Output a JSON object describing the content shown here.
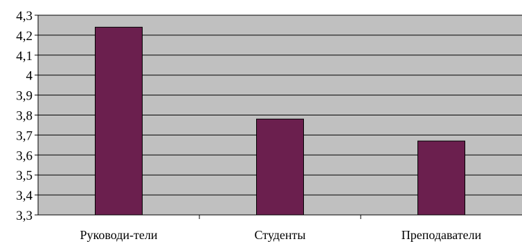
{
  "chart_data": {
    "type": "bar",
    "categories": [
      "Руководи-тели",
      "Студенты",
      "Преподаватели"
    ],
    "series": [
      {
        "values": [
          4.24,
          3.78,
          3.67
        ]
      }
    ],
    "ylim": [
      3.3,
      4.3
    ],
    "yticks": [
      "3,3",
      "3,4",
      "3,5",
      "3,6",
      "3,7",
      "3,8",
      "3,9",
      "4",
      "4,1",
      "4,2",
      "4,3"
    ],
    "ytick_values": [
      3.3,
      3.4,
      3.5,
      3.6,
      3.7,
      3.8,
      3.9,
      4.0,
      4.1,
      4.2,
      4.3
    ],
    "grid": true,
    "legend": "none",
    "colors": {
      "plot_background": "#c0c0c0",
      "bar_fill": "#6b1f4e",
      "bar_stroke": "#000000",
      "grid": "#000000"
    }
  }
}
